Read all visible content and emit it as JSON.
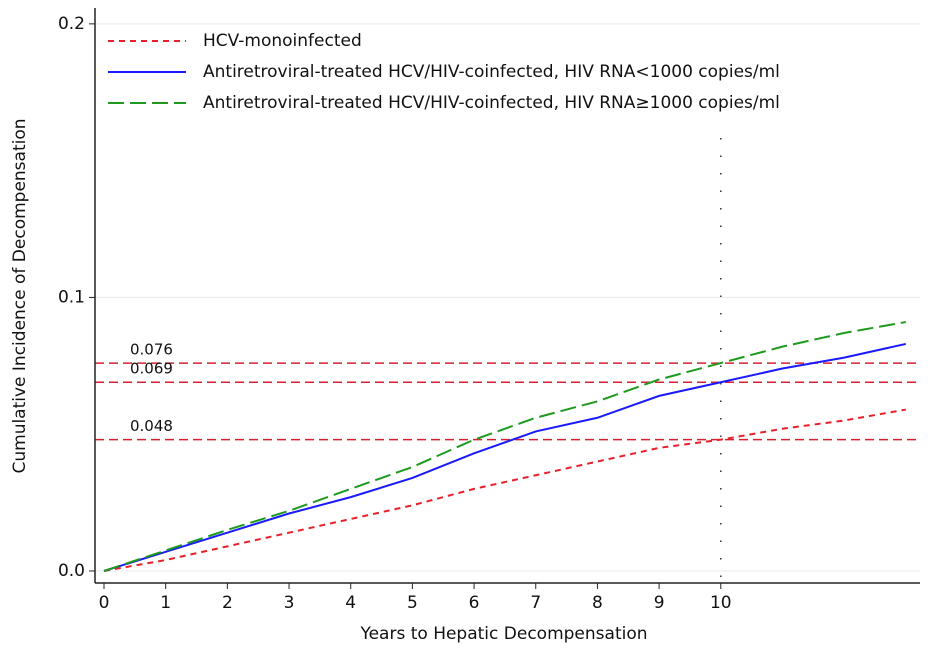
{
  "chart_data": {
    "type": "line",
    "x_label": "Years to Hepatic Decompensation",
    "y_label": "Cumulative Incidence of Decompensation",
    "x": [
      0,
      1,
      2,
      3,
      4,
      5,
      6,
      7,
      8,
      9,
      10,
      11,
      12,
      13
    ],
    "series": [
      {
        "name": "HCV-monoinfected",
        "color": "#e8202a",
        "dash": "short-dash",
        "values": [
          0,
          0.004,
          0.009,
          0.014,
          0.019,
          0.024,
          0.03,
          0.035,
          0.04,
          0.045,
          0.048,
          0.052,
          0.055,
          0.059
        ]
      },
      {
        "name": "Antiretroviral-treated HCV/HIV-coinfected, HIV RNA<1000 copies/ml",
        "color": "#1a1aff",
        "dash": "solid",
        "values": [
          0,
          0.007,
          0.014,
          0.021,
          0.027,
          0.034,
          0.043,
          0.051,
          0.056,
          0.064,
          0.069,
          0.074,
          0.078,
          0.083
        ]
      },
      {
        "name": "Antiretroviral-treated HCV/HIV-coinfected, HIV RNA≥1000 copies/ml",
        "color": "#1e9a1e",
        "dash": "long-dash",
        "values": [
          0,
          0.0075,
          0.015,
          0.022,
          0.03,
          0.038,
          0.048,
          0.056,
          0.062,
          0.07,
          0.076,
          0.082,
          0.087,
          0.091
        ]
      }
    ],
    "hlines": [
      0.076,
      0.069,
      0.048
    ],
    "hline_color": "#d42030",
    "vlines": [
      10
    ],
    "xlim": [
      -0.146,
      13.23
    ],
    "ylim": [
      -0.0044,
      0.2058
    ],
    "xticks": [
      0,
      1,
      2,
      3,
      4,
      5,
      6,
      7,
      8,
      9,
      10
    ],
    "yticks": [
      {
        "value": 0,
        "label": "0.0"
      },
      0.1,
      0.2
    ],
    "grid": true,
    "legend": "top-left"
  }
}
